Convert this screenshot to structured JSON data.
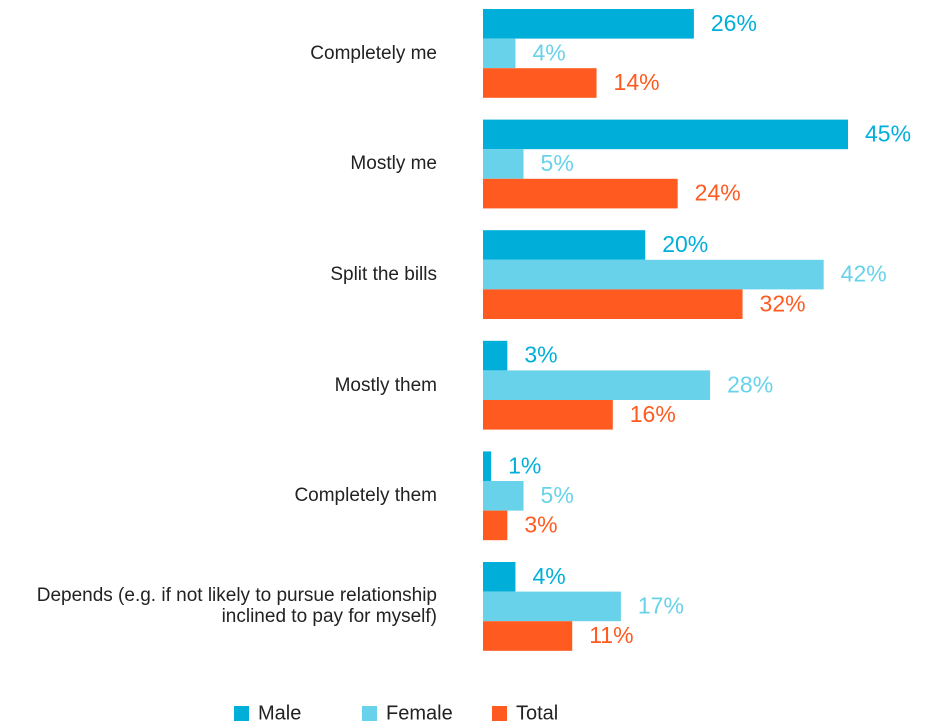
{
  "chart_data": {
    "type": "bar",
    "orientation": "horizontal",
    "categories": [
      "Completely me",
      "Mostly me",
      "Split the bills",
      "Mostly them",
      "Completely them",
      "Depends (e.g. if not likely to pursue relationship inclined to pay for myself)"
    ],
    "series": [
      {
        "name": "Male",
        "color": "#00afd9",
        "values": [
          26,
          45,
          20,
          3,
          1,
          4
        ],
        "value_labels": [
          "26%",
          "45%",
          "20%",
          "3%",
          "1%",
          "4%"
        ]
      },
      {
        "name": "Female",
        "color": "#68d2ea",
        "values": [
          4,
          5,
          42,
          28,
          5,
          17
        ],
        "value_labels": [
          "4%",
          "5%",
          "42%",
          "28%",
          "5%",
          "17%"
        ]
      },
      {
        "name": "Total",
        "color": "#ff5a1f",
        "values": [
          14,
          24,
          32,
          16,
          3,
          11
        ],
        "value_labels": [
          "14%",
          "24%",
          "32%",
          "16%",
          "3%",
          "11%"
        ]
      }
    ],
    "xlim": [
      0,
      45
    ],
    "legend": "bottom"
  }
}
